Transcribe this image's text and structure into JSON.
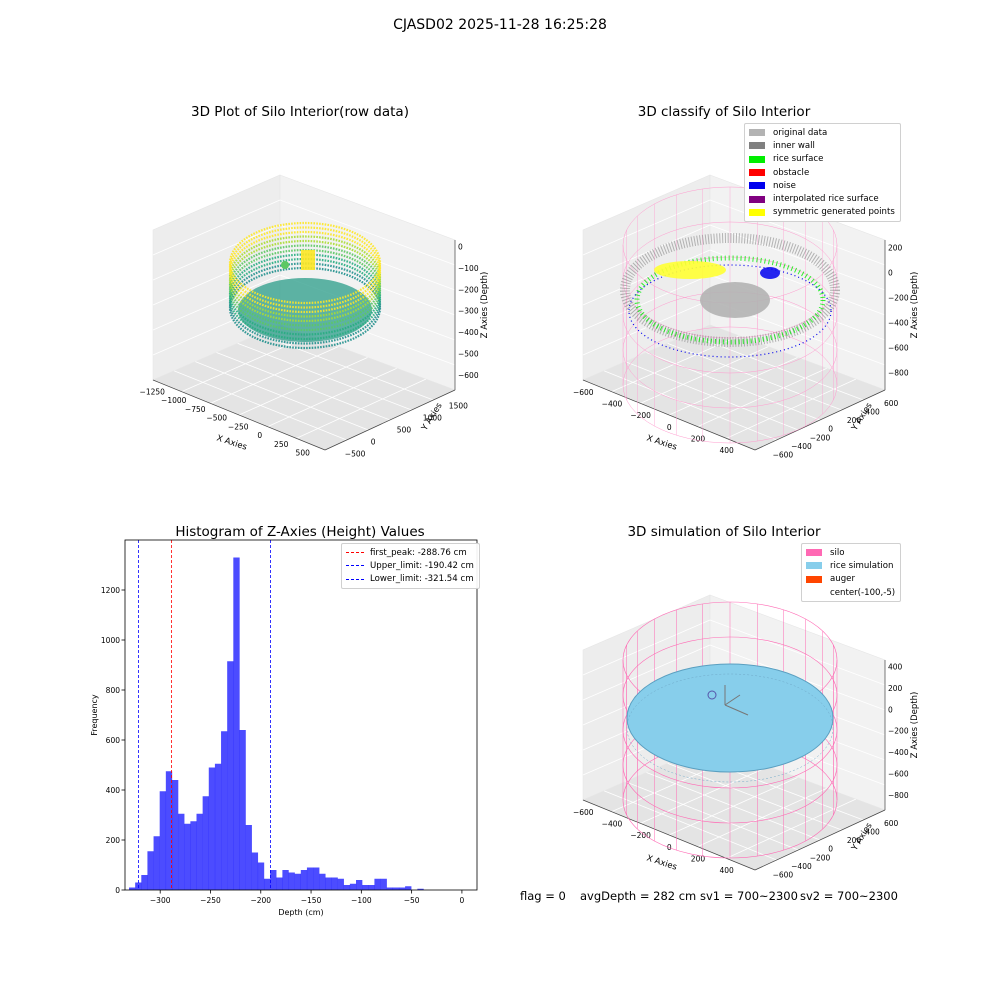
{
  "figure": {
    "suptitle": "CJASD02 2025-11-28 16:25:28"
  },
  "panel_raw": {
    "title": "3D Plot of Silo Interior(row data)",
    "xlabel": "X Axies",
    "ylabel": "Y Axies",
    "zlabel": "Z Axies (Depth)",
    "xticks": [
      "−1250",
      "−1000",
      "−750",
      "−500",
      "−250",
      "0",
      "250",
      "500"
    ],
    "yticks": [
      "−500",
      "0",
      "500",
      "1000",
      "1500"
    ],
    "zticks": [
      "0",
      "−100",
      "−200",
      "−300",
      "−400",
      "−500",
      "−600"
    ],
    "colormap": "viridis"
  },
  "panel_classify": {
    "title": "3D classify of Silo Interior",
    "xlabel": "X Axies",
    "ylabel": "Y Axies",
    "zlabel": "Z Axies (Depth)",
    "xticks": [
      "−600",
      "−400",
      "−200",
      "0",
      "200",
      "400"
    ],
    "yticks": [
      "−600",
      "−400",
      "−200",
      "0",
      "200",
      "400",
      "600"
    ],
    "zticks": [
      "200",
      "0",
      "−200",
      "−400",
      "−600",
      "−800"
    ],
    "legend": [
      {
        "label": "original data",
        "color": "#b3b3b3"
      },
      {
        "label": "inner wall",
        "color": "#808080"
      },
      {
        "label": "rice surface",
        "color": "#00ee00"
      },
      {
        "label": "obstacle",
        "color": "#ff0000"
      },
      {
        "label": "noise",
        "color": "#0000ee"
      },
      {
        "label": "interpolated rice surface",
        "color": "#800080"
      },
      {
        "label": "symmetric generated points",
        "color": "#ffff00"
      }
    ]
  },
  "panel_sim": {
    "title": "3D simulation of Silo Interior",
    "xlabel": "X Axies",
    "ylabel": "Y Axies",
    "zlabel": "Z Axies (Depth)",
    "xticks": [
      "−600",
      "−400",
      "−200",
      "0",
      "200",
      "400"
    ],
    "yticks": [
      "−600",
      "−400",
      "−200",
      "0",
      "200",
      "400",
      "600"
    ],
    "zticks": [
      "400",
      "200",
      "0",
      "−200",
      "−400",
      "−600",
      "−800"
    ],
    "legend": [
      {
        "label": "silo",
        "color": "#ff69b4"
      },
      {
        "label": "rice simulation",
        "color": "#87ceeb"
      },
      {
        "label": "auger",
        "color": "#ff4500"
      },
      {
        "label": "center(-100,-5)",
        "color": ""
      }
    ],
    "status": {
      "flag": "flag = 0",
      "avg": "avgDepth = 282 cm",
      "sv1": "sv1 = 700~2300",
      "sv2": "sv2 = 700~2300"
    }
  },
  "chart_data": {
    "type": "bar",
    "title": "Histogram of Z-Axies (Height) Values",
    "xlabel": "Depth (cm)",
    "ylabel": "Frequency",
    "xlim": [
      -335,
      15
    ],
    "ylim": [
      0,
      1400
    ],
    "xticks": [
      -300,
      -250,
      -200,
      -150,
      -100,
      -50,
      0
    ],
    "yticks": [
      0,
      200,
      400,
      600,
      800,
      1000,
      1200
    ],
    "bin_start": -331,
    "bin_width": 6.1,
    "values": [
      10,
      30,
      60,
      155,
      215,
      395,
      475,
      440,
      305,
      265,
      275,
      305,
      375,
      490,
      505,
      635,
      915,
      1330,
      640,
      260,
      150,
      110,
      45,
      80,
      50,
      80,
      70,
      65,
      80,
      90,
      90,
      65,
      50,
      50,
      45,
      20,
      25,
      40,
      20,
      20,
      45,
      45,
      10,
      10,
      10,
      15,
      0,
      5
    ],
    "bar_color": "#0000ff",
    "bar_alpha": 0.7,
    "vlines": [
      {
        "label": "first_peak: -288.76 cm",
        "x": -288.76,
        "color": "#ff0000"
      },
      {
        "label": "Upper_limit: -190.42 cm",
        "x": -190.42,
        "color": "#0000ff"
      },
      {
        "label": "Lower_limit: -321.54 cm",
        "x": -321.54,
        "color": "#0000ff"
      }
    ]
  }
}
